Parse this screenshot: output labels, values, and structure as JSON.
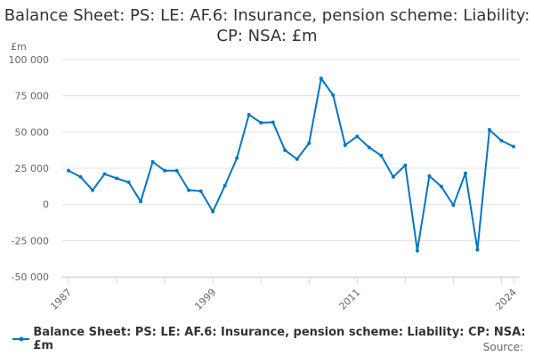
{
  "chart_data": {
    "type": "line",
    "title": "Balance Sheet: PS: LE: AF.6: Insurance, pension scheme: Liability: CP: NSA: £m",
    "ylabel": "£m",
    "xlabel": "",
    "ylim": [
      -50000,
      100000
    ],
    "yticks": [
      100000,
      75000,
      50000,
      25000,
      0,
      -25000,
      -50000
    ],
    "ytick_labels": [
      "100 000",
      "75 000",
      "50 000",
      "25 000",
      "0",
      "-25 000",
      "-50 000"
    ],
    "xtick_labels": [
      "1987",
      "1999",
      "2011",
      "2024"
    ],
    "grid": true,
    "legend_position": "bottom-left",
    "color": "#0077c0",
    "series": [
      {
        "name": "Balance Sheet: PS: LE: AF.6: Insurance, pension scheme: Liability: CP: NSA: £m",
        "x": [
          1987,
          1988,
          1989,
          1990,
          1991,
          1992,
          1993,
          1994,
          1995,
          1996,
          1997,
          1998,
          1999,
          2000,
          2001,
          2002,
          2003,
          2004,
          2005,
          2006,
          2007,
          2008,
          2009,
          2010,
          2011,
          2012,
          2013,
          2014,
          2015,
          2016,
          2017,
          2018,
          2019,
          2020,
          2021,
          2022,
          2023,
          2024
        ],
        "values": [
          23300,
          19000,
          9800,
          21000,
          18000,
          15300,
          2000,
          29400,
          23300,
          23300,
          9800,
          9200,
          -5000,
          12900,
          32000,
          62000,
          56400,
          56700,
          37400,
          31300,
          42300,
          87000,
          75500,
          41000,
          47000,
          39300,
          33700,
          19000,
          27000,
          -32000,
          19600,
          12300,
          -600,
          21500,
          -31300,
          51500,
          44000,
          40000
        ]
      }
    ]
  },
  "source_label": "Source:"
}
